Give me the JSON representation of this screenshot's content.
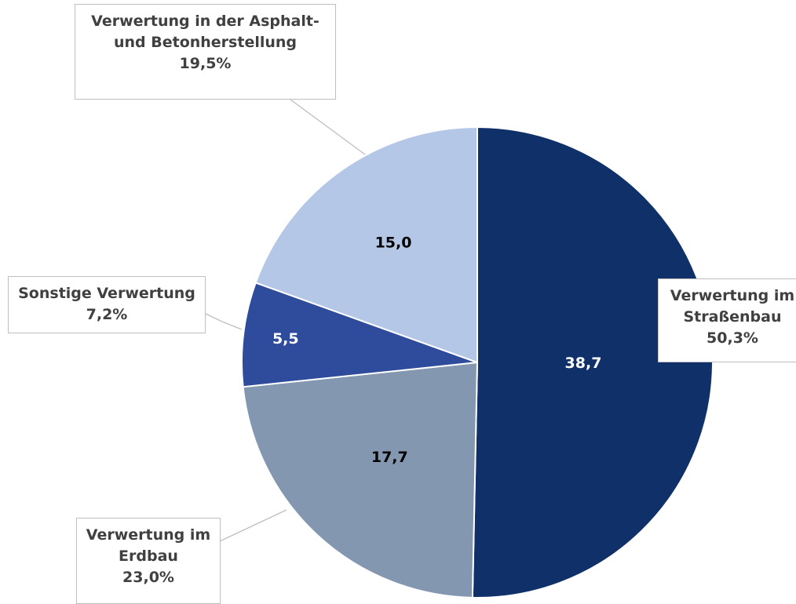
{
  "chart_data": {
    "type": "pie",
    "categories": [
      "Verwertung im\nStraßenbau",
      "Verwertung im\nErdbau",
      "Sonstige Verwertung",
      "Verwertung in der Asphalt-\nund Betonherstellung"
    ],
    "values": [
      38.7,
      17.7,
      5.5,
      15.0
    ],
    "value_labels": [
      "38,7",
      "17,7",
      "5,5",
      "15,0"
    ],
    "percentages": [
      50.3,
      23.0,
      7.2,
      19.5
    ],
    "percentage_labels": [
      "50,3%",
      "23,0%",
      "7,2%",
      "19,5%"
    ],
    "colors": [
      "#10306a",
      "#8497b0",
      "#2f4b9b",
      "#b4c7e7"
    ]
  }
}
